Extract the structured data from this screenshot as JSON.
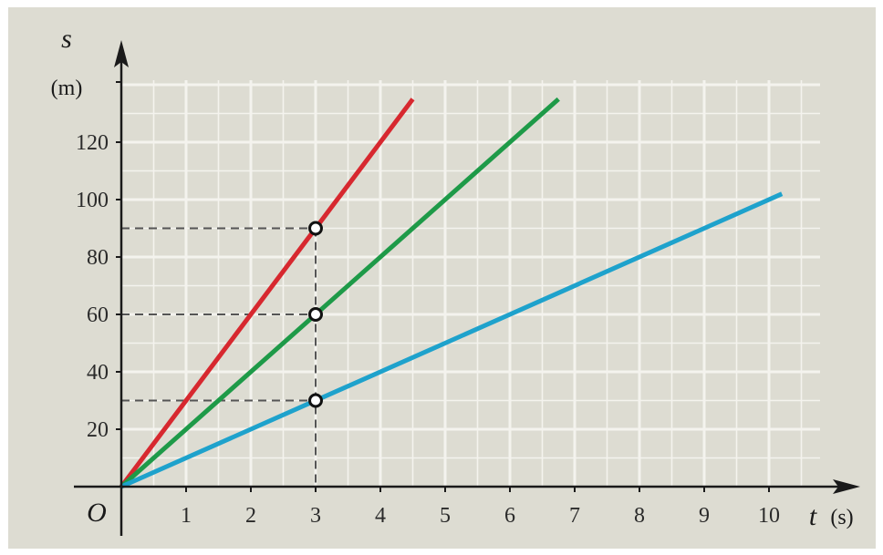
{
  "chart_data": {
    "type": "line",
    "x_axis": {
      "variable": "t",
      "unit": "(s)",
      "range": [
        0,
        10.9
      ],
      "ticks": [
        1,
        2,
        3,
        4,
        5,
        6,
        7,
        8,
        9,
        10
      ]
    },
    "y_axis": {
      "variable": "s",
      "unit": "(m)",
      "range": [
        0,
        140
      ],
      "ticks": [
        20,
        40,
        60,
        80,
        100,
        120
      ]
    },
    "origin_label": "O",
    "grid": true,
    "minor_grid_step": {
      "x": 0.5,
      "y": 10
    },
    "series": [
      {
        "color": "#d7282f",
        "points": [
          [
            0,
            0
          ],
          [
            4.5,
            135
          ]
        ]
      },
      {
        "color": "#1e9a48",
        "points": [
          [
            0,
            0
          ],
          [
            6.75,
            135
          ]
        ]
      },
      {
        "color": "#1ea2cc",
        "points": [
          [
            0,
            0
          ],
          [
            10.2,
            102
          ]
        ]
      }
    ],
    "reference_points": [
      {
        "x": 3,
        "y": 90
      },
      {
        "x": 3,
        "y": 60
      },
      {
        "x": 3,
        "y": 30
      }
    ],
    "colors": {
      "background": "#dddcd2",
      "grid": "#f4f3ee",
      "axis": "#1a1a1a",
      "dashed_guides": "#555555"
    }
  }
}
